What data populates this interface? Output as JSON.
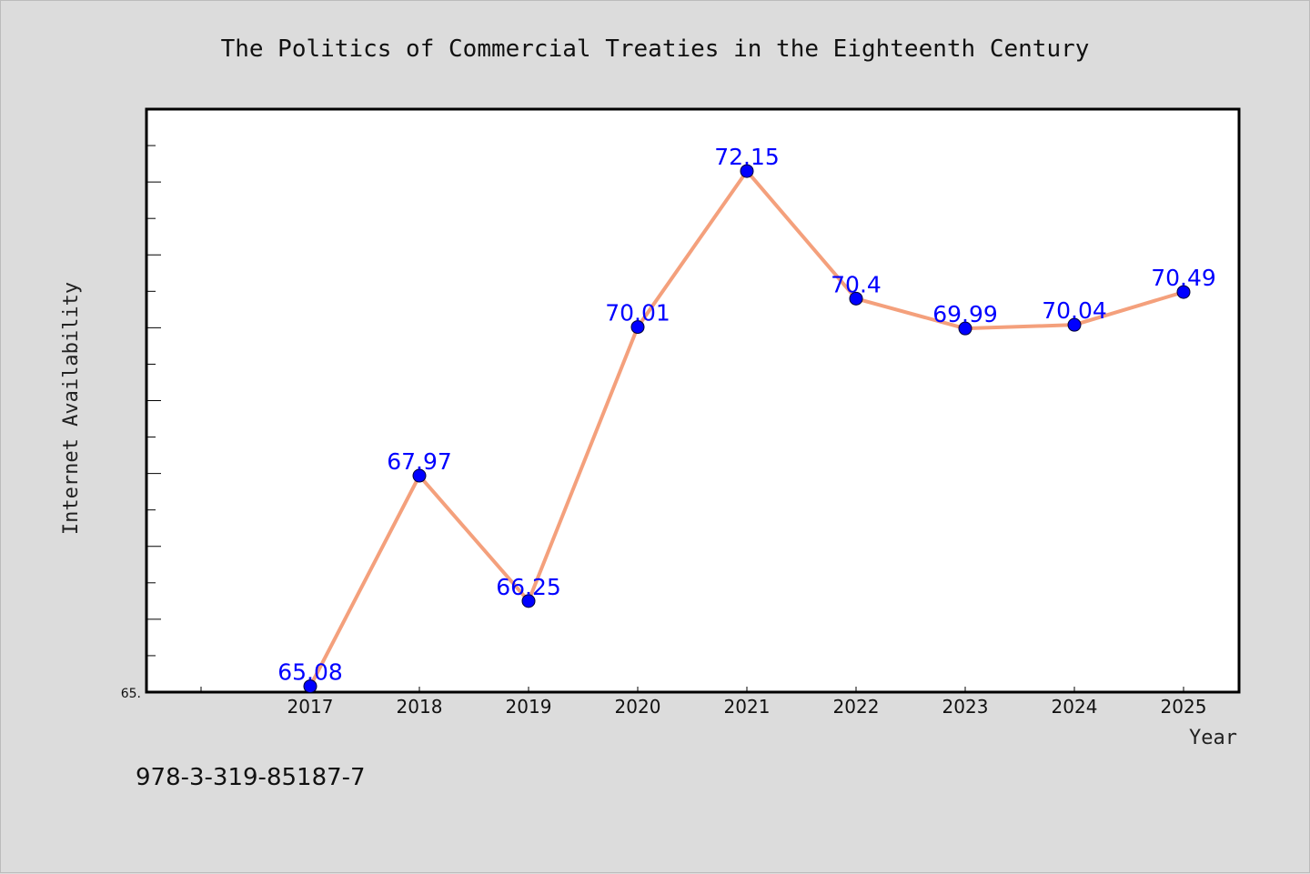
{
  "chart_data": {
    "type": "line",
    "title": "The Politics of Commercial Treaties in the Eighteenth Century",
    "xlabel": "Year",
    "ylabel": "Internet Availability",
    "x": [
      "2017",
      "2018",
      "2019",
      "2020",
      "2021",
      "2022",
      "2023",
      "2024",
      "2025"
    ],
    "values": [
      65.08,
      67.97,
      66.25,
      70.01,
      72.15,
      70.4,
      69.99,
      70.04,
      70.49
    ],
    "data_labels": [
      "65.08",
      "67.97",
      "66.25",
      "70.01",
      "72.15",
      "70.4",
      "69.99",
      "70.04",
      "70.49"
    ],
    "y_tick_labels": [
      "65."
    ],
    "ylim": [
      65,
      73
    ],
    "y_minor_tick_step": 0.5,
    "grid": false,
    "line_color": "#f4a07c",
    "marker_color": "#0000ff",
    "label_color": "#0000ff"
  },
  "footer": {
    "isbn": "978-3-319-85187-7"
  }
}
